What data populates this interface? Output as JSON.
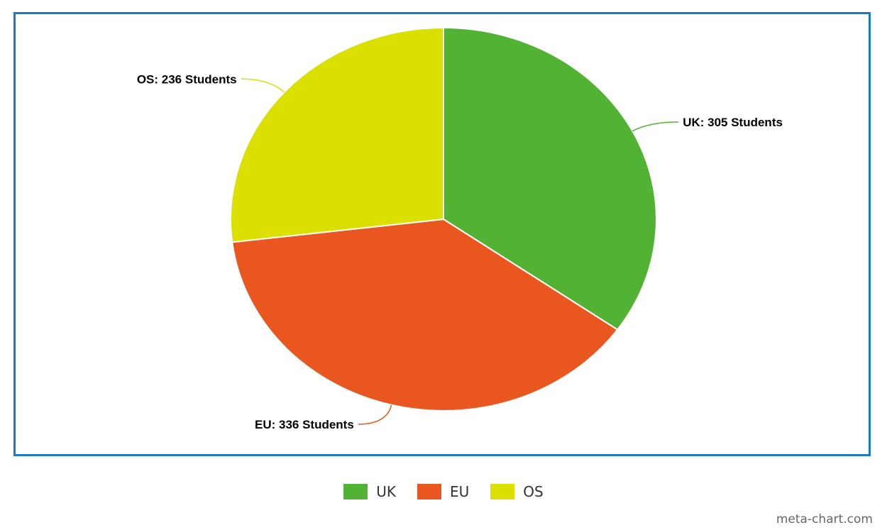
{
  "chart_data": {
    "type": "pie",
    "categories": [
      "UK",
      "EU",
      "OS"
    ],
    "values": [
      305,
      336,
      236
    ],
    "labels": [
      "UK: 305 Students",
      "EU: 336 Students",
      "OS: 236 Students"
    ],
    "colors": [
      "#52b234",
      "#ea561f",
      "#dce000"
    ],
    "legend": "bottom-center",
    "start_angle_deg": 0,
    "direction": "clockwise"
  },
  "legend": {
    "items": [
      {
        "label": "UK",
        "color": "#52b234"
      },
      {
        "label": "EU",
        "color": "#ea561f"
      },
      {
        "label": "OS",
        "color": "#dce000"
      }
    ]
  },
  "credit": "meta-chart.com",
  "frame_color": "#1b7ac8"
}
